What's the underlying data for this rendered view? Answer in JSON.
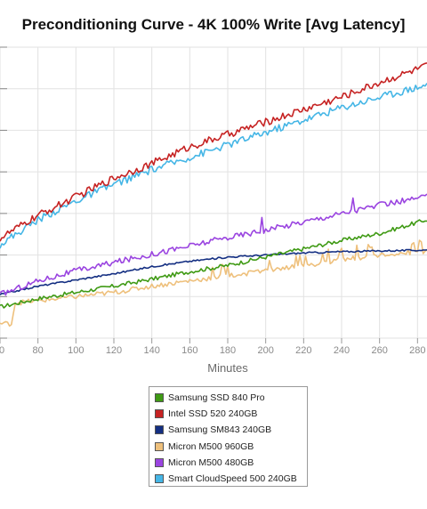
{
  "chart_data": {
    "type": "line",
    "title": "Preconditioning Curve - 4K 100% Write [Avg Latency]",
    "xlabel": "Minutes",
    "ylabel": "",
    "xlim": [
      60,
      285
    ],
    "ylim": [
      0,
      7
    ],
    "x_ticks": [
      "0",
      "80",
      "100",
      "120",
      "140",
      "160",
      "180",
      "200",
      "220",
      "240",
      "260",
      "280"
    ],
    "grid": true,
    "legend_position": "bottom",
    "series": [
      {
        "name": "Samsung SSD 840 Pro",
        "color": "#3f9a14",
        "x": [
          60,
          80,
          100,
          120,
          140,
          160,
          180,
          200,
          220,
          240,
          260,
          285
        ],
        "values": [
          0.75,
          0.95,
          1.1,
          1.25,
          1.42,
          1.6,
          1.75,
          1.95,
          2.15,
          2.35,
          2.52,
          2.85
        ]
      },
      {
        "name": "Intel SSD 520 240GB",
        "color": "#c62323",
        "x": [
          60,
          80,
          100,
          120,
          140,
          160,
          180,
          200,
          220,
          240,
          260,
          285
        ],
        "values": [
          2.4,
          2.95,
          3.4,
          3.85,
          4.2,
          4.6,
          4.9,
          5.2,
          5.5,
          5.8,
          6.15,
          6.55
        ]
      },
      {
        "name": "Samsung SM843 240GB",
        "color": "#142f82",
        "x": [
          60,
          80,
          100,
          120,
          140,
          160,
          180,
          200,
          220,
          240,
          260,
          285
        ],
        "values": [
          1.05,
          1.25,
          1.4,
          1.55,
          1.72,
          1.85,
          1.95,
          2.0,
          2.05,
          2.08,
          2.1,
          2.12
        ]
      },
      {
        "name": "Micron M500 960GB",
        "color": "#eec07c",
        "x": [
          60,
          66,
          68,
          80,
          100,
          120,
          140,
          160,
          180,
          200,
          220,
          240,
          260,
          285
        ],
        "values": [
          0.35,
          0.35,
          0.85,
          0.9,
          1.0,
          1.1,
          1.25,
          1.38,
          1.5,
          1.62,
          1.75,
          1.88,
          2.0,
          2.1
        ]
      },
      {
        "name": "Micron M500 480GB",
        "color": "#9a44e0",
        "x": [
          60,
          80,
          100,
          120,
          140,
          160,
          180,
          200,
          220,
          240,
          260,
          285
        ],
        "values": [
          1.05,
          1.38,
          1.62,
          1.82,
          2.02,
          2.22,
          2.42,
          2.6,
          2.8,
          3.0,
          3.2,
          3.4
        ]
      },
      {
        "name": "Smart CloudSpeed 500 240GB",
        "color": "#45b6e6",
        "x": [
          60,
          80,
          100,
          120,
          140,
          160,
          180,
          200,
          220,
          240,
          260,
          285
        ],
        "values": [
          2.25,
          2.85,
          3.3,
          3.7,
          4.05,
          4.35,
          4.65,
          4.95,
          5.25,
          5.55,
          5.8,
          6.1
        ]
      }
    ]
  }
}
